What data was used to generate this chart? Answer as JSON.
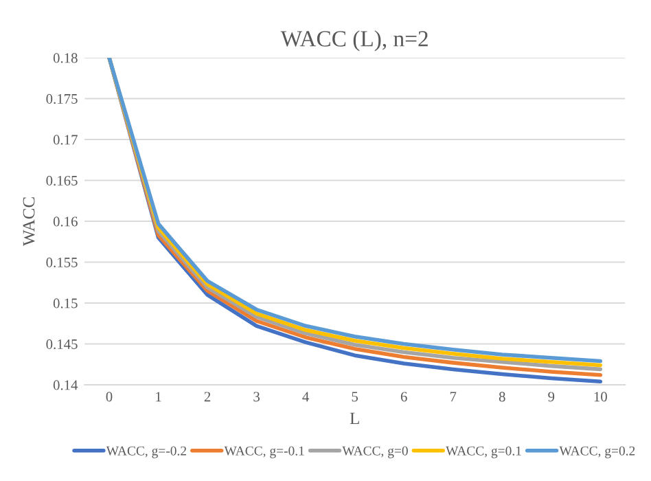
{
  "chart_data": {
    "type": "line",
    "title": "WACC (L), n=2",
    "xlabel": "L",
    "ylabel": "WACC",
    "categories": [
      "0",
      "1",
      "2",
      "3",
      "4",
      "5",
      "6",
      "7",
      "8",
      "9",
      "10"
    ],
    "series": [
      {
        "name": "WACC, g=-0.2",
        "color": "#4472c4",
        "values": [
          0.18,
          0.158,
          0.151,
          0.1472,
          0.1452,
          0.1436,
          0.1426,
          0.1419,
          0.1413,
          0.1408,
          0.1404
        ]
      },
      {
        "name": "WACC, g=-0.1",
        "color": "#ed7d31",
        "values": [
          0.18,
          0.1583,
          0.1515,
          0.1478,
          0.1458,
          0.1444,
          0.1434,
          0.1427,
          0.1421,
          0.1416,
          0.1412
        ]
      },
      {
        "name": "WACC, g=0",
        "color": "#a5a5a5",
        "values": [
          0.18,
          0.1588,
          0.1519,
          0.1483,
          0.1463,
          0.1449,
          0.144,
          0.1433,
          0.1428,
          0.1423,
          0.1419
        ]
      },
      {
        "name": "WACC, g=0.1",
        "color": "#ffc000",
        "values": [
          0.18,
          0.1592,
          0.1523,
          0.1487,
          0.1467,
          0.1454,
          0.1445,
          0.1438,
          0.1432,
          0.1428,
          0.1424
        ]
      },
      {
        "name": "WACC, g=0.2",
        "color": "#5b9bd5",
        "values": [
          0.18,
          0.1597,
          0.1527,
          0.1492,
          0.1472,
          0.1459,
          0.145,
          0.1443,
          0.1437,
          0.1433,
          0.1429
        ]
      }
    ],
    "ylim": [
      0.14,
      0.18
    ],
    "yticks": [
      0.14,
      0.145,
      0.15,
      0.155,
      0.16,
      0.165,
      0.17,
      0.175,
      0.18
    ],
    "grid": "y",
    "legend": "bottom",
    "marker": "none",
    "line_style": "solid"
  }
}
